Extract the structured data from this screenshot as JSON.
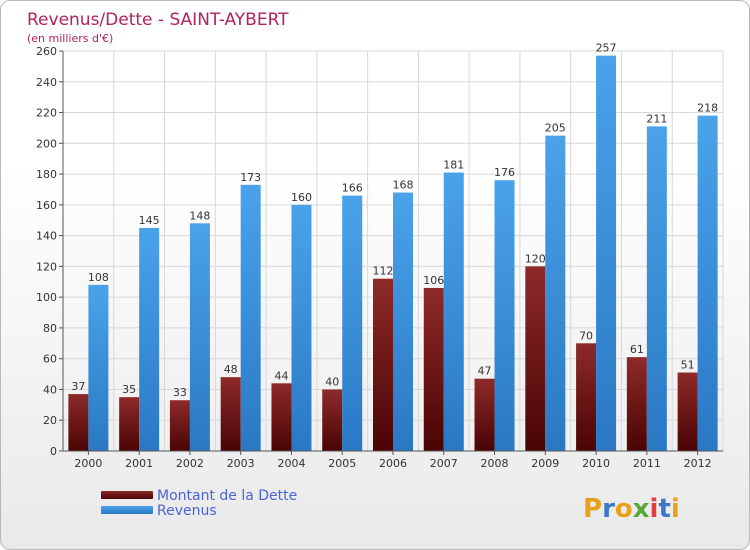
{
  "chart_data": {
    "type": "bar",
    "title": "Revenus/Dette - SAINT-AYBERT",
    "subtitle": "(en milliers d'€)",
    "categories": [
      "2000",
      "2001",
      "2002",
      "2003",
      "2004",
      "2005",
      "2006",
      "2007",
      "2008",
      "2009",
      "2010",
      "2011",
      "2012"
    ],
    "series": [
      {
        "name": "Montant de la Dette",
        "values": [
          37,
          35,
          33,
          48,
          44,
          40,
          112,
          106,
          47,
          120,
          70,
          61,
          51
        ],
        "color": "#7a1a1a"
      },
      {
        "name": "Revenus",
        "values": [
          108,
          145,
          148,
          173,
          160,
          166,
          168,
          181,
          176,
          205,
          257,
          211,
          218
        ],
        "color": "#3b93dd"
      }
    ],
    "ylim": [
      0,
      260
    ],
    "yticks": [
      0,
      20,
      40,
      60,
      80,
      100,
      120,
      140,
      160,
      180,
      200,
      220,
      240,
      260
    ],
    "grid": true,
    "legend_position": "bottom-left"
  },
  "logo": {
    "text": "Proxiti",
    "letters": [
      "P",
      "r",
      "o",
      "x",
      "i",
      "t",
      "i"
    ],
    "colors": [
      "#e8a21a",
      "#3a78c8",
      "#e8a21a",
      "#5aa83a",
      "#e04040",
      "#3a78c8",
      "#e8a21a"
    ]
  }
}
